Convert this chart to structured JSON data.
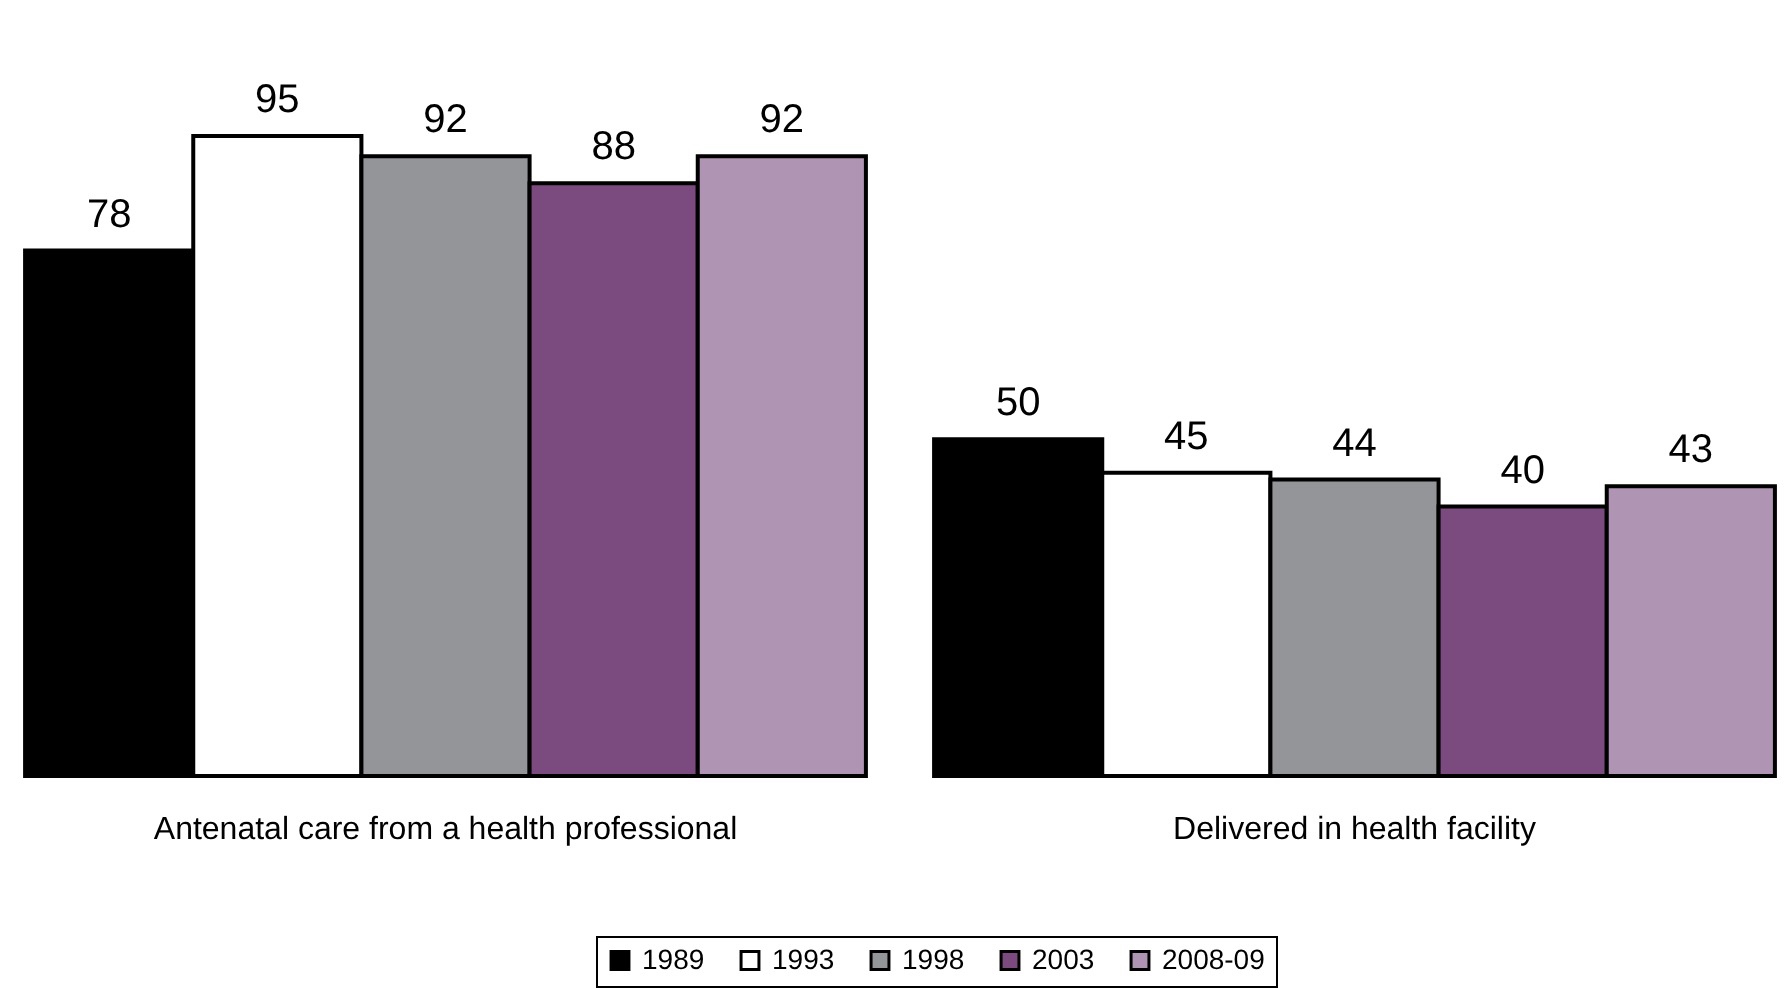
{
  "chart_data": {
    "type": "bar",
    "categories": [
      "Antenatal care from a health professional",
      "Delivered in health facility"
    ],
    "series": [
      {
        "name": "1989",
        "color": "#000000",
        "values": [
          78,
          50
        ]
      },
      {
        "name": "1993",
        "color": "#ffffff",
        "values": [
          95,
          45
        ]
      },
      {
        "name": "1998",
        "color": "#939598",
        "values": [
          92,
          44
        ]
      },
      {
        "name": "2003",
        "color": "#7b4a7f",
        "values": [
          88,
          40
        ]
      },
      {
        "name": "2008-09",
        "color": "#b094b4",
        "values": [
          92,
          43
        ]
      }
    ],
    "data_labels": true,
    "legend": "bottom"
  }
}
